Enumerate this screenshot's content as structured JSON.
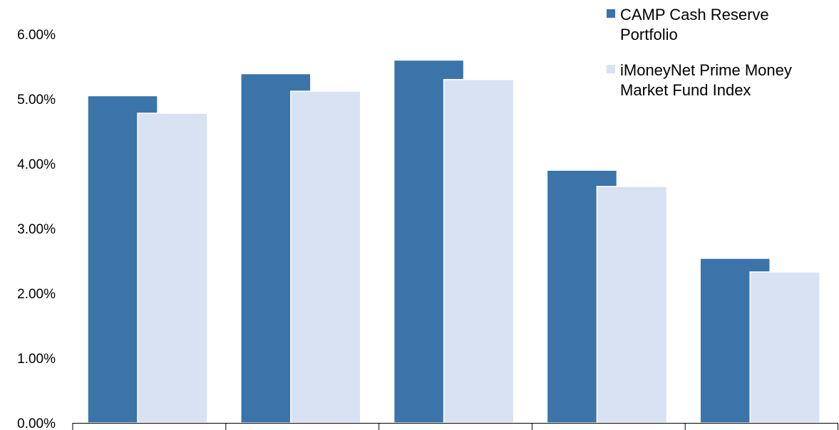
{
  "chart_data": {
    "type": "bar",
    "categories": [
      "",
      "",
      "",
      "",
      ""
    ],
    "series": [
      {
        "name": "CAMP Cash Reserve Portfolio",
        "values": [
          5.05,
          5.39,
          5.6,
          3.9,
          2.54
        ],
        "color": "#3a74a8"
      },
      {
        "name": "iMoneyNet Prime Money Market Fund Index",
        "values": [
          4.78,
          5.12,
          5.3,
          3.65,
          2.33
        ],
        "color": "#d9e2f3"
      }
    ],
    "y_ticks": [
      "0.00%",
      "1.00%",
      "2.00%",
      "3.00%",
      "4.00%",
      "5.00%",
      "6.00%"
    ],
    "ylim": [
      0,
      6
    ],
    "grid": false,
    "legend_position": "top-right",
    "legend": {
      "series_1_lines": [
        "CAMP Cash Reserve",
        "Portfolio"
      ],
      "series_2_lines": [
        "iMoneyNet Prime Money",
        "Market Fund Index"
      ]
    }
  }
}
